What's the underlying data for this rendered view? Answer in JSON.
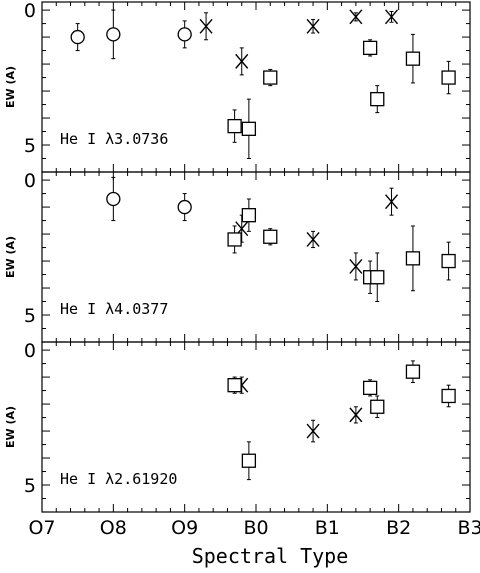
{
  "chart_data": [
    {
      "type": "scatter",
      "title": "He I λ3.0736",
      "ylabel": "EW (A)",
      "ylim": [
        -0.3,
        6
      ],
      "yticks": [
        0,
        5
      ],
      "series": [
        {
          "marker": "circle",
          "points": [
            {
              "x": 7.5,
              "y": 1.0,
              "err": 0.5
            },
            {
              "x": 8.0,
              "y": 0.9,
              "err": 0.9
            },
            {
              "x": 9.0,
              "y": 0.9,
              "err": 0.5
            }
          ]
        },
        {
          "marker": "x",
          "points": [
            {
              "x": 9.3,
              "y": 0.6,
              "err": 0.5
            },
            {
              "x": 9.8,
              "y": 1.9,
              "err": 0.5
            },
            {
              "x": 10.8,
              "y": 0.6,
              "err": 0.25
            },
            {
              "x": 11.4,
              "y": 0.25,
              "err": 0.15
            },
            {
              "x": 11.9,
              "y": 0.25,
              "err": 0.2
            }
          ]
        },
        {
          "marker": "square",
          "points": [
            {
              "x": 9.7,
              "y": 4.3,
              "err": 0.6
            },
            {
              "x": 9.9,
              "y": 4.4,
              "err": 1.1
            },
            {
              "x": 10.2,
              "y": 2.5,
              "err": 0.3
            },
            {
              "x": 11.6,
              "y": 1.4,
              "err": 0.3
            },
            {
              "x": 11.7,
              "y": 3.3,
              "err": 0.5
            },
            {
              "x": 12.2,
              "y": 1.8,
              "err": 0.9
            },
            {
              "x": 12.7,
              "y": 2.5,
              "err": 0.6
            }
          ]
        }
      ]
    },
    {
      "type": "scatter",
      "title": "He I λ4.0377",
      "ylabel": "EW (A)",
      "ylim": [
        -0.3,
        6
      ],
      "yticks": [
        0,
        5
      ],
      "series": [
        {
          "marker": "circle",
          "points": [
            {
              "x": 8.0,
              "y": 0.7,
              "err": 0.8
            },
            {
              "x": 9.0,
              "y": 1.0,
              "err": 0.5
            }
          ]
        },
        {
          "marker": "x",
          "points": [
            {
              "x": 9.8,
              "y": 1.8,
              "err": 0.5
            },
            {
              "x": 10.8,
              "y": 2.2,
              "err": 0.3
            },
            {
              "x": 11.4,
              "y": 3.2,
              "err": 0.5
            },
            {
              "x": 11.9,
              "y": 0.8,
              "err": 0.5
            }
          ]
        },
        {
          "marker": "square",
          "points": [
            {
              "x": 9.7,
              "y": 2.2,
              "err": 0.5
            },
            {
              "x": 9.9,
              "y": 1.3,
              "err": 0.6
            },
            {
              "x": 10.2,
              "y": 2.1,
              "err": 0.3
            },
            {
              "x": 11.6,
              "y": 3.6,
              "err": 0.6
            },
            {
              "x": 11.7,
              "y": 3.6,
              "err": 0.9
            },
            {
              "x": 12.2,
              "y": 2.9,
              "err": 1.2
            },
            {
              "x": 12.7,
              "y": 3.0,
              "err": 0.7
            }
          ]
        }
      ]
    },
    {
      "type": "scatter",
      "title": "He I λ2.61920",
      "ylabel": "EW (A)",
      "ylim": [
        -0.3,
        6
      ],
      "yticks": [
        0,
        5
      ],
      "series": [
        {
          "marker": "x",
          "points": [
            {
              "x": 9.8,
              "y": 1.3,
              "err": 0.3
            },
            {
              "x": 10.8,
              "y": 3.0,
              "err": 0.4
            },
            {
              "x": 11.4,
              "y": 2.4,
              "err": 0.3
            }
          ]
        },
        {
          "marker": "square",
          "points": [
            {
              "x": 9.7,
              "y": 1.3,
              "err": 0.3
            },
            {
              "x": 9.9,
              "y": 4.1,
              "err": 0.7
            },
            {
              "x": 11.6,
              "y": 1.4,
              "err": 0.3
            },
            {
              "x": 11.7,
              "y": 2.1,
              "err": 0.4
            },
            {
              "x": 12.2,
              "y": 0.8,
              "err": 0.4
            },
            {
              "x": 12.7,
              "y": 1.7,
              "err": 0.4
            }
          ]
        }
      ]
    }
  ],
  "xaxis": {
    "title": "Spectral Type",
    "range": [
      7,
      13
    ],
    "ticks": [
      {
        "x": 7,
        "label": "O7"
      },
      {
        "x": 8,
        "label": "O8"
      },
      {
        "x": 9,
        "label": "O9"
      },
      {
        "x": 10,
        "label": "B0"
      },
      {
        "x": 11,
        "label": "B1"
      },
      {
        "x": 12,
        "label": "B2"
      },
      {
        "x": 13,
        "label": "B3"
      }
    ]
  }
}
